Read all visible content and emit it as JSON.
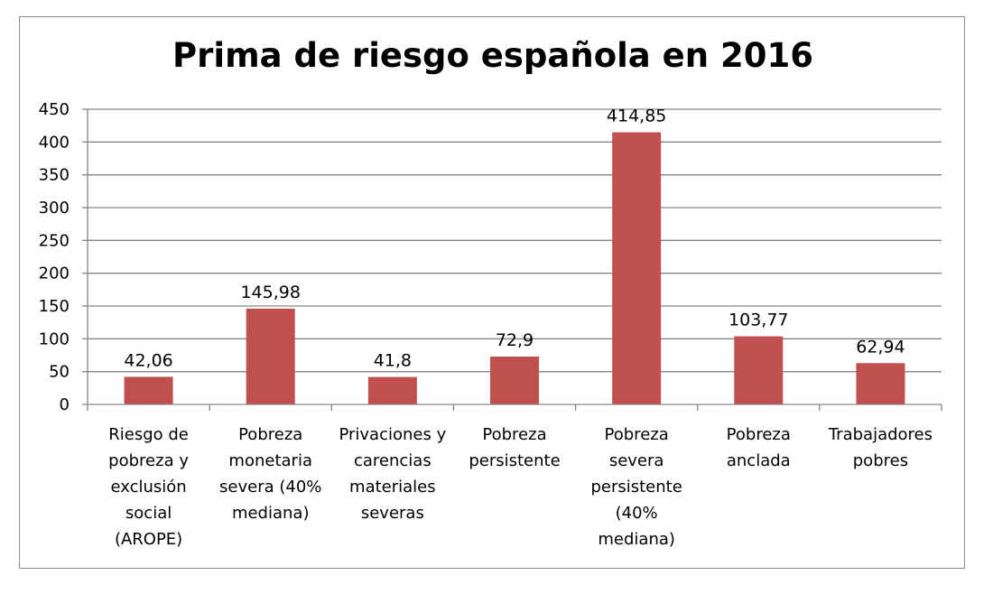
{
  "chart_data": {
    "type": "bar",
    "title": "Prima de riesgo española en 2016",
    "xlabel": "",
    "ylabel": "",
    "ylim": [
      0,
      450
    ],
    "yticks": [
      0,
      50,
      100,
      150,
      200,
      250,
      300,
      350,
      400,
      450
    ],
    "grid": true,
    "legend": "none",
    "categories": [
      [
        "Riesgo de",
        "pobreza y",
        "exclusión",
        "social",
        "(AROPE)"
      ],
      [
        "Pobreza",
        "monetaria",
        "severa (40%",
        "mediana)"
      ],
      [
        "Privaciones y",
        "carencias",
        "materiales",
        "severas"
      ],
      [
        "Pobreza",
        "persistente"
      ],
      [
        "Pobreza",
        "severa",
        "persistente",
        "(40%",
        "mediana)"
      ],
      [
        "Pobreza",
        "anclada"
      ],
      [
        "Trabajadores",
        "pobres"
      ]
    ],
    "values": [
      42.06,
      145.98,
      41.8,
      72.9,
      414.85,
      103.77,
      62.94
    ],
    "value_labels": [
      "42,06",
      "145,98",
      "41,8",
      "72,9",
      "414,85",
      "103,77",
      "62,94"
    ],
    "colors": {
      "bar": "#c0504d",
      "grid": "#868686",
      "axis": "#868686"
    }
  }
}
